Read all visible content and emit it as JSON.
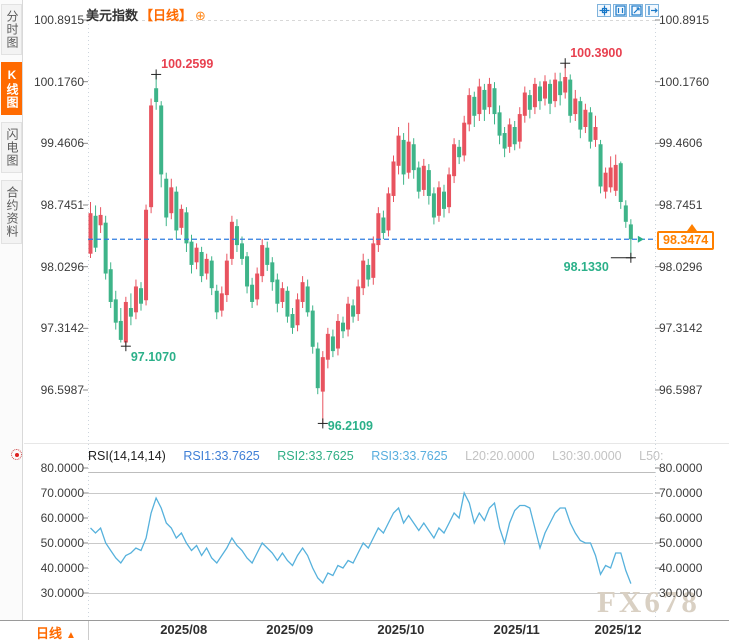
{
  "sidebar": {
    "items": [
      {
        "label": "分时图",
        "active": false
      },
      {
        "label": "K线图",
        "active": true
      },
      {
        "label": "闪电图",
        "active": false
      },
      {
        "label": "合约资料",
        "active": false
      }
    ]
  },
  "header": {
    "symbol": "美元指数",
    "period_tag": "【日线】",
    "add_indicator_icon": "⊕",
    "toolbar_icons": [
      "crosshair",
      "axis-scale",
      "auto-fit",
      "pan-right"
    ]
  },
  "colors": {
    "up_candle": "#e8535f",
    "down_candle": "#3eb489",
    "rsi_line": "#56b1dc",
    "price_dashed_line": "#2e7ce0",
    "accent_orange": "#ff6a00",
    "price_marker": "#ff8000",
    "annotation_high": "#e8404f",
    "annotation_low": "#2bb089",
    "rsi1_label": "#3f7fd6",
    "rsi2_label": "#2fae85",
    "rsi3_label": "#58aede",
    "level_label": "#c3c3c3"
  },
  "chart_data": {
    "type": "candlestick",
    "title": "美元指数 日线",
    "main": {
      "y_tick_labels": [
        "100.8915",
        "100.1760",
        "99.4606",
        "98.7451",
        "98.0296",
        "97.3142",
        "96.5987"
      ],
      "y_range": [
        96.5987,
        100.8915
      ],
      "candles": {
        "open": [
          98.18,
          98.62,
          98.51,
          98.54,
          98.0,
          97.65,
          97.4,
          97.15,
          97.55,
          97.5,
          97.78,
          97.64,
          98.72,
          100.1,
          99.9,
          99.05,
          98.65,
          98.9,
          98.48,
          98.66,
          98.32,
          98.08,
          98.2,
          97.95,
          98.1,
          97.75,
          97.52,
          97.7,
          98.12,
          98.5,
          98.3,
          98.15,
          97.82,
          97.65,
          97.92,
          98.25,
          98.08,
          97.88,
          97.62,
          97.75,
          97.48,
          97.35,
          97.62,
          97.8,
          97.52,
          97.08,
          96.58,
          96.95,
          97.22,
          97.08,
          97.38,
          97.3,
          97.58,
          97.48,
          97.78,
          98.05,
          97.9,
          98.28,
          98.6,
          98.45,
          98.85,
          99.2,
          99.5,
          99.12,
          99.45,
          99.18,
          98.92,
          99.15,
          98.88,
          98.62,
          98.9,
          98.72,
          99.08,
          99.42,
          99.32,
          99.68,
          100.0,
          99.8,
          100.08,
          99.88,
          100.1,
          99.82,
          99.58,
          99.42,
          99.65,
          99.48,
          99.78,
          100.02,
          99.88,
          100.12,
          99.98,
          100.15,
          99.95,
          100.18,
          100.05,
          100.2,
          99.8,
          99.95,
          99.65,
          99.82,
          99.5,
          99.45,
          98.9,
          98.95,
          98.91,
          99.23,
          98.74,
          98.52
        ],
        "high": [
          98.78,
          98.74,
          98.72,
          98.62,
          98.08,
          97.75,
          97.55,
          97.68,
          97.72,
          97.88,
          97.85,
          98.75,
          99.98,
          100.2599,
          99.95,
          99.12,
          99.05,
          98.96,
          98.75,
          98.72,
          98.4,
          98.3,
          98.26,
          98.18,
          98.15,
          97.82,
          97.8,
          98.18,
          98.62,
          98.58,
          98.38,
          98.2,
          97.9,
          98.02,
          98.35,
          98.32,
          98.14,
          97.95,
          97.85,
          97.8,
          97.55,
          97.72,
          97.92,
          97.88,
          97.58,
          97.15,
          97.05,
          97.32,
          97.3,
          97.48,
          97.45,
          97.68,
          97.65,
          97.88,
          98.18,
          98.12,
          98.38,
          98.72,
          98.68,
          98.95,
          99.32,
          99.65,
          99.58,
          99.7,
          99.52,
          99.25,
          99.28,
          99.22,
          98.95,
          99.02,
          98.98,
          99.18,
          99.52,
          99.5,
          99.78,
          100.1,
          100.06,
          100.21,
          100.15,
          100.22,
          100.17,
          99.9,
          99.65,
          99.75,
          99.72,
          99.88,
          100.12,
          100.08,
          100.22,
          100.18,
          100.25,
          100.2,
          100.28,
          100.28,
          100.39,
          100.26,
          100.08,
          100.0,
          99.92,
          99.88,
          99.78,
          99.5,
          99.18,
          99.31,
          99.33,
          99.25,
          98.8,
          98.58
        ],
        "low": [
          98.13,
          98.2,
          98.42,
          97.88,
          97.55,
          97.3,
          97.15,
          97.107,
          97.35,
          97.42,
          97.52,
          97.58,
          98.65,
          99.85,
          98.95,
          98.5,
          98.58,
          98.35,
          98.4,
          98.2,
          97.95,
          98.0,
          97.85,
          97.88,
          97.7,
          97.42,
          97.45,
          97.62,
          98.05,
          98.2,
          98.05,
          97.72,
          97.55,
          97.58,
          97.85,
          97.98,
          97.75,
          97.5,
          97.55,
          97.38,
          97.25,
          97.28,
          97.55,
          97.45,
          97.02,
          96.55,
          96.2109,
          96.85,
          96.98,
          97.0,
          97.2,
          97.22,
          97.38,
          97.4,
          97.7,
          97.8,
          97.82,
          98.2,
          98.35,
          98.38,
          98.78,
          99.1,
          98.98,
          99.05,
          99.05,
          98.82,
          98.85,
          98.75,
          98.52,
          98.55,
          98.6,
          98.65,
          99.0,
          99.22,
          99.25,
          99.6,
          99.65,
          99.72,
          99.72,
          99.8,
          99.68,
          99.45,
          99.3,
          99.35,
          99.38,
          99.4,
          99.7,
          99.75,
          99.8,
          99.85,
          99.9,
          99.8,
          99.88,
          99.9,
          99.98,
          99.7,
          99.72,
          99.52,
          99.58,
          99.4,
          99.42,
          98.88,
          98.82,
          98.89,
          98.85,
          98.7,
          98.48,
          98.133
        ],
        "close": [
          98.65,
          98.25,
          98.63,
          97.95,
          97.62,
          97.38,
          97.18,
          97.62,
          97.45,
          97.8,
          97.6,
          98.69,
          99.9,
          99.94,
          99.1,
          98.6,
          98.95,
          98.45,
          98.7,
          98.3,
          98.05,
          98.25,
          97.92,
          98.12,
          97.78,
          97.5,
          97.72,
          98.1,
          98.55,
          98.28,
          98.12,
          97.8,
          97.62,
          97.95,
          98.28,
          98.05,
          97.85,
          97.6,
          97.78,
          97.45,
          97.32,
          97.65,
          97.85,
          97.5,
          97.1,
          96.62,
          96.98,
          97.25,
          97.05,
          97.4,
          97.28,
          97.6,
          97.45,
          97.8,
          98.1,
          97.88,
          98.3,
          98.65,
          98.42,
          98.88,
          99.25,
          99.55,
          99.1,
          99.48,
          99.15,
          98.9,
          99.2,
          98.85,
          98.6,
          98.95,
          98.7,
          99.1,
          99.45,
          99.3,
          99.7,
          100.02,
          99.78,
          100.12,
          99.85,
          100.15,
          99.8,
          99.55,
          99.4,
          99.68,
          99.45,
          99.8,
          100.05,
          99.85,
          100.15,
          99.95,
          100.18,
          99.92,
          100.2,
          100.02,
          100.23,
          99.78,
          99.98,
          99.62,
          99.85,
          99.48,
          99.65,
          98.96,
          99.12,
          99.18,
          99.21,
          98.78,
          98.55,
          98.3474
        ]
      },
      "month_ticks": [
        {
          "label": "2025/08",
          "i": 14
        },
        {
          "label": "2025/09",
          "i": 35
        },
        {
          "label": "2025/10",
          "i": 57
        },
        {
          "label": "2025/11",
          "i": 80
        },
        {
          "label": "2025/12",
          "i": 100
        }
      ],
      "annotations": [
        {
          "kind": "high",
          "text": "100.2599",
          "value": 100.2599,
          "i": 13
        },
        {
          "kind": "high",
          "text": "100.3900",
          "value": 100.39,
          "i": 94
        },
        {
          "kind": "low",
          "text": "97.1070",
          "value": 97.107,
          "i": 7
        },
        {
          "kind": "low",
          "text": "96.2109",
          "value": 96.2109,
          "i": 46
        },
        {
          "kind": "low-last",
          "text": "98.1330",
          "value": 98.133,
          "i": 107
        }
      ],
      "last_price": {
        "label": "98.3474",
        "value": 98.3474
      }
    },
    "rsi": {
      "header": {
        "name": "RSI(14,14,14)",
        "rsi1": "RSI1:33.7625",
        "rsi2": "RSI2:33.7625",
        "rsi3": "RSI3:33.7625",
        "l20": "L20:20.0000",
        "l30": "L30:30.0000",
        "l50": "L50:"
      },
      "y_tick_labels": [
        "80.0000",
        "70.0000",
        "60.0000",
        "50.0000",
        "40.0000",
        "30.0000"
      ],
      "level_lines": [
        70,
        50,
        30
      ],
      "values": [
        56,
        54,
        56,
        50,
        47,
        44,
        42,
        45,
        46,
        48,
        47,
        52,
        62,
        68,
        64,
        58,
        56,
        52,
        54,
        50,
        47,
        49,
        45,
        48,
        44,
        42,
        45,
        48,
        52,
        49,
        47,
        44,
        42,
        46,
        50,
        48,
        46,
        43,
        46,
        43,
        41,
        45,
        48,
        45,
        40,
        36,
        34,
        38,
        37,
        41,
        40,
        43,
        42,
        46,
        50,
        48,
        52,
        56,
        54,
        58,
        62,
        64,
        58,
        61,
        58,
        55,
        58,
        55,
        52,
        56,
        54,
        58,
        62,
        60,
        70,
        66,
        58,
        62,
        59,
        64,
        66,
        56,
        50,
        58,
        63,
        65,
        65,
        64,
        56,
        48,
        54,
        58,
        62,
        64,
        64,
        58,
        54,
        51,
        50,
        50,
        45,
        37.5,
        41,
        40,
        46,
        46,
        39,
        33.7625
      ]
    }
  },
  "bottom_bar": {
    "period_label": "日线",
    "dropdown_arrow": "▲"
  },
  "watermark": "FX678"
}
